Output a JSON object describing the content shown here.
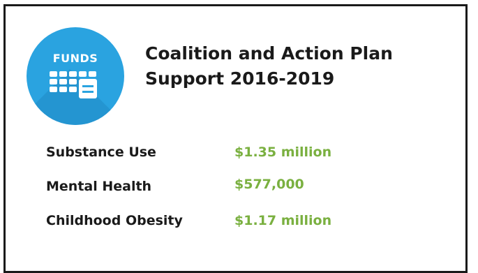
{
  "badge": {
    "label": "FUNDS",
    "icon": "calendar-icon",
    "color": "#2aa3e0"
  },
  "title_line1": "Coalition and Action Plan",
  "title_line2": "Support 2016-2019",
  "rows": [
    {
      "label": "Substance Use",
      "value": "$1.35 million"
    },
    {
      "label": "Mental Health",
      "value": "$577,000"
    },
    {
      "label": "Childhood Obesity",
      "value": "$1.17 million"
    }
  ],
  "colors": {
    "value": "#7ab040",
    "text": "#1a1a1a",
    "border": "#1a1a1a"
  }
}
